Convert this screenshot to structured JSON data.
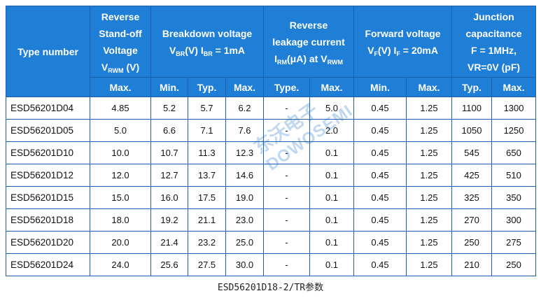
{
  "table": {
    "group_headers": [
      {
        "lines": [
          [
            {
              "t": "Type number"
            }
          ]
        ]
      },
      {
        "lines": [
          [
            {
              "t": "Reverse"
            }
          ],
          [
            {
              "t": "Stand-off"
            }
          ],
          [
            {
              "t": "Voltage"
            }
          ],
          [
            {
              "t": "V"
            },
            {
              "s": "RWM"
            },
            {
              "t": " (V)"
            }
          ]
        ]
      },
      {
        "lines": [
          [
            {
              "t": "Breakdown voltage"
            }
          ],
          [
            {
              "t": "V"
            },
            {
              "s": "BR"
            },
            {
              "t": "(V)   I"
            },
            {
              "s": "BR"
            },
            {
              "t": " = 1mA"
            }
          ]
        ]
      },
      {
        "lines": [
          [
            {
              "t": "Reverse"
            }
          ],
          [
            {
              "t": "leakage current"
            }
          ],
          [
            {
              "t": "I"
            },
            {
              "s": "RM"
            },
            {
              "t": "(μA) at V"
            },
            {
              "s": "RWM"
            }
          ]
        ]
      },
      {
        "lines": [
          [
            {
              "t": "Forward voltage"
            }
          ],
          [
            {
              "t": "V"
            },
            {
              "s": "F"
            },
            {
              "t": "(V) I"
            },
            {
              "s": "F"
            },
            {
              "t": " = 20mA"
            }
          ]
        ]
      },
      {
        "lines": [
          [
            {
              "t": "Junction"
            }
          ],
          [
            {
              "t": "capacitance"
            }
          ],
          [
            {
              "t": "F = 1MHz,"
            }
          ],
          [
            {
              "t": "VR=0V (pF)"
            }
          ]
        ]
      }
    ],
    "sub_headers": [
      "Max.",
      "Min.",
      "Typ.",
      "Max.",
      "Type.",
      "Max.",
      "Min.",
      "Max.",
      "Typ.",
      "Max."
    ],
    "rows": [
      [
        "ESD56201D04",
        "4.85",
        "5.2",
        "5.7",
        "6.2",
        "-",
        "5.0",
        "0.45",
        "1.25",
        "1100",
        "1300"
      ],
      [
        "ESD56201D05",
        "5.0",
        "6.6",
        "7.1",
        "7.6",
        "-",
        "2.0",
        "0.45",
        "1.25",
        "1050",
        "1250"
      ],
      [
        "ESD56201D10",
        "10.0",
        "10.7",
        "11.3",
        "12.3",
        "-",
        "0.1",
        "0.45",
        "1.25",
        "545",
        "650"
      ],
      [
        "ESD56201D12",
        "12.0",
        "12.7",
        "13.7",
        "14.6",
        "-",
        "0.1",
        "0.45",
        "1.25",
        "425",
        "510"
      ],
      [
        "ESD56201D15",
        "15.0",
        "16.0",
        "17.5",
        "19.0",
        "-",
        "0.1",
        "0.45",
        "1.25",
        "325",
        "350"
      ],
      [
        "ESD56201D18",
        "18.0",
        "19.2",
        "21.1",
        "23.0",
        "-",
        "0.1",
        "0.45",
        "1.25",
        "270",
        "300"
      ],
      [
        "ESD56201D20",
        "20.0",
        "21.4",
        "23.2",
        "25.0",
        "-",
        "0.1",
        "0.45",
        "1.25",
        "250",
        "275"
      ],
      [
        "ESD56201D24",
        "24.0",
        "25.6",
        "27.5",
        "30.0",
        "-",
        "0.1",
        "0.45",
        "1.25",
        "210",
        "250"
      ]
    ]
  },
  "watermark": {
    "cn": "东沃电子",
    "en": "DOWOSEMI"
  },
  "caption": "ESD56201D18-2/TR参数"
}
